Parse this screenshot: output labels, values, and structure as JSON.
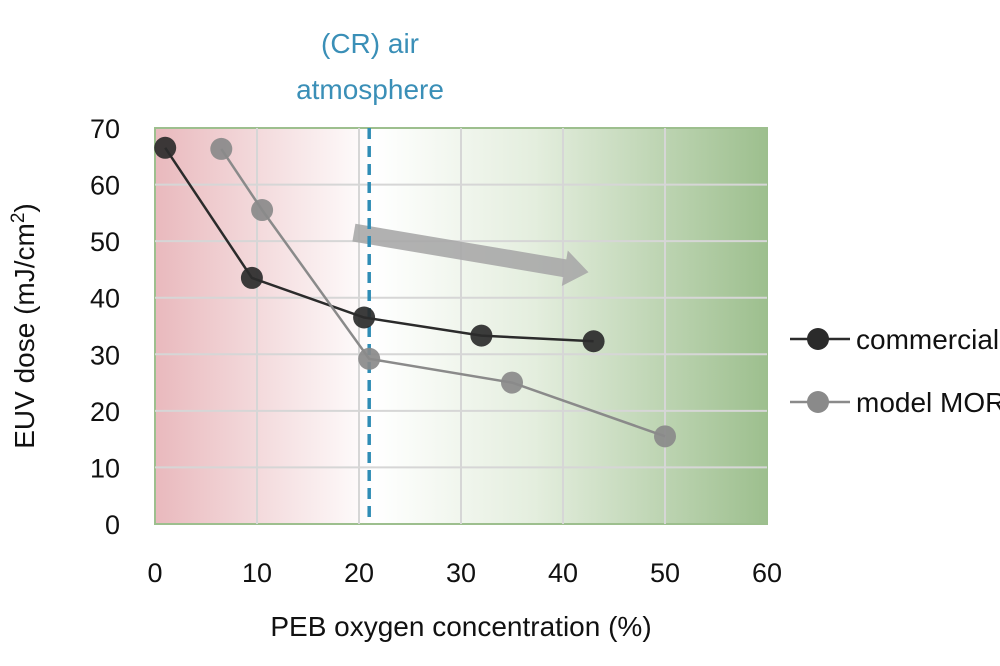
{
  "chart_data": {
    "type": "line",
    "title": "",
    "xlabel": "PEB oxygen concentration (%)",
    "ylabel": "EUV dose (mJ/cm2)",
    "ylabel_parts": {
      "main": "EUV dose (mJ/cm",
      "sup": "2",
      "close": ")"
    },
    "xlim": [
      0,
      60
    ],
    "ylim": [
      0,
      70
    ],
    "x_ticks": [
      0,
      10,
      20,
      30,
      40,
      50,
      60
    ],
    "y_ticks": [
      0,
      10,
      20,
      30,
      40,
      50,
      60,
      70
    ],
    "grid": true,
    "legend_position": "right",
    "series": [
      {
        "name": "commercial",
        "color": "#2b2b2b",
        "points": [
          {
            "x": 1,
            "y": 66.5
          },
          {
            "x": 9.5,
            "y": 43.5
          },
          {
            "x": 20.5,
            "y": 36.5
          },
          {
            "x": 32,
            "y": 33.3
          },
          {
            "x": 43,
            "y": 32.3
          }
        ]
      },
      {
        "name": "model MOR",
        "color": "#8a8a8a",
        "points": [
          {
            "x": 6.5,
            "y": 66.3
          },
          {
            "x": 10.5,
            "y": 55.5
          },
          {
            "x": 21,
            "y": 29.2
          },
          {
            "x": 35,
            "y": 25
          },
          {
            "x": 50,
            "y": 15.5
          }
        ]
      }
    ],
    "reference_line": {
      "x": 21,
      "label_line1": "(CR) air",
      "label_line2": "atmosphere",
      "color": "#2f8cb5"
    },
    "trend_arrow": {
      "from": {
        "x": 19.5,
        "y": 51.5
      },
      "to": {
        "x": 42.5,
        "y": 44.5
      },
      "color": "#a9a9a9"
    },
    "background_gradient": {
      "low_color": "#e9b9bd",
      "mid_color": "#ffffff",
      "high_color": "#9dbf8e"
    }
  }
}
